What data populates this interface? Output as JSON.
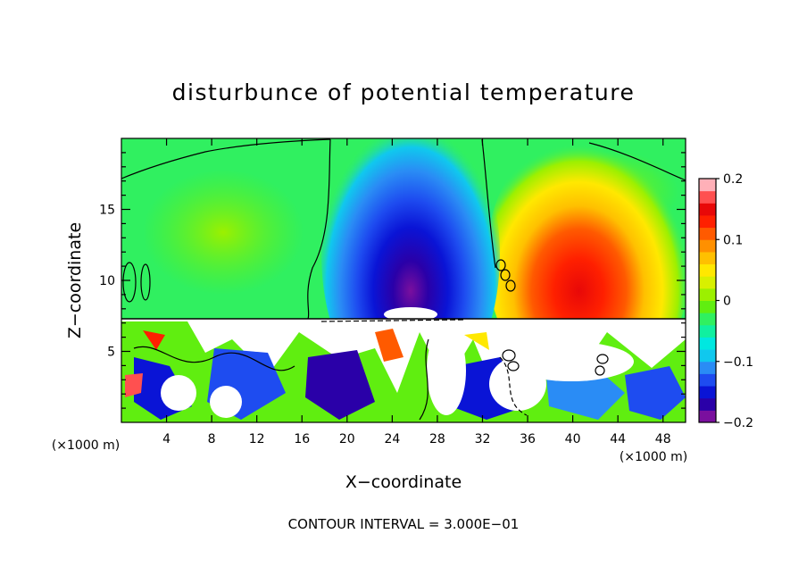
{
  "chart_data": {
    "type": "heatmap",
    "title": "disturbunce of potential temperature",
    "xlabel": "X−coordinate",
    "ylabel": "Z−coordinate",
    "x_unit_label_left": "(×1000 m)",
    "x_unit_label_right": "(×1000 m)",
    "xlim": [
      0,
      50
    ],
    "ylim": [
      0,
      20
    ],
    "x_ticks": [
      4,
      8,
      12,
      16,
      20,
      24,
      28,
      32,
      36,
      40,
      44,
      48
    ],
    "y_ticks": [
      5,
      10,
      15
    ],
    "colorbar": {
      "range": [
        -0.2,
        0.2
      ],
      "tick_labels": [
        "0.2",
        "0.1",
        "0",
        "−0.1",
        "−0.2"
      ],
      "tick_values": [
        0.2,
        0.1,
        0,
        -0.1,
        -0.2
      ],
      "colors": [
        "#7a0f9e",
        "#2a00a8",
        "#0a14d6",
        "#1e4cf0",
        "#2a8cf5",
        "#10c8ee",
        "#00e8e0",
        "#10f0a0",
        "#30f060",
        "#60ee10",
        "#9cf000",
        "#d8f000",
        "#ffe800",
        "#ffc000",
        "#ff9000",
        "#ff5a00",
        "#ff2000",
        "#e80808",
        "#ff5050",
        "#ffb0b8"
      ]
    },
    "grid": false,
    "footer": "CONTOUR INTERVAL = 3.000E−01"
  }
}
